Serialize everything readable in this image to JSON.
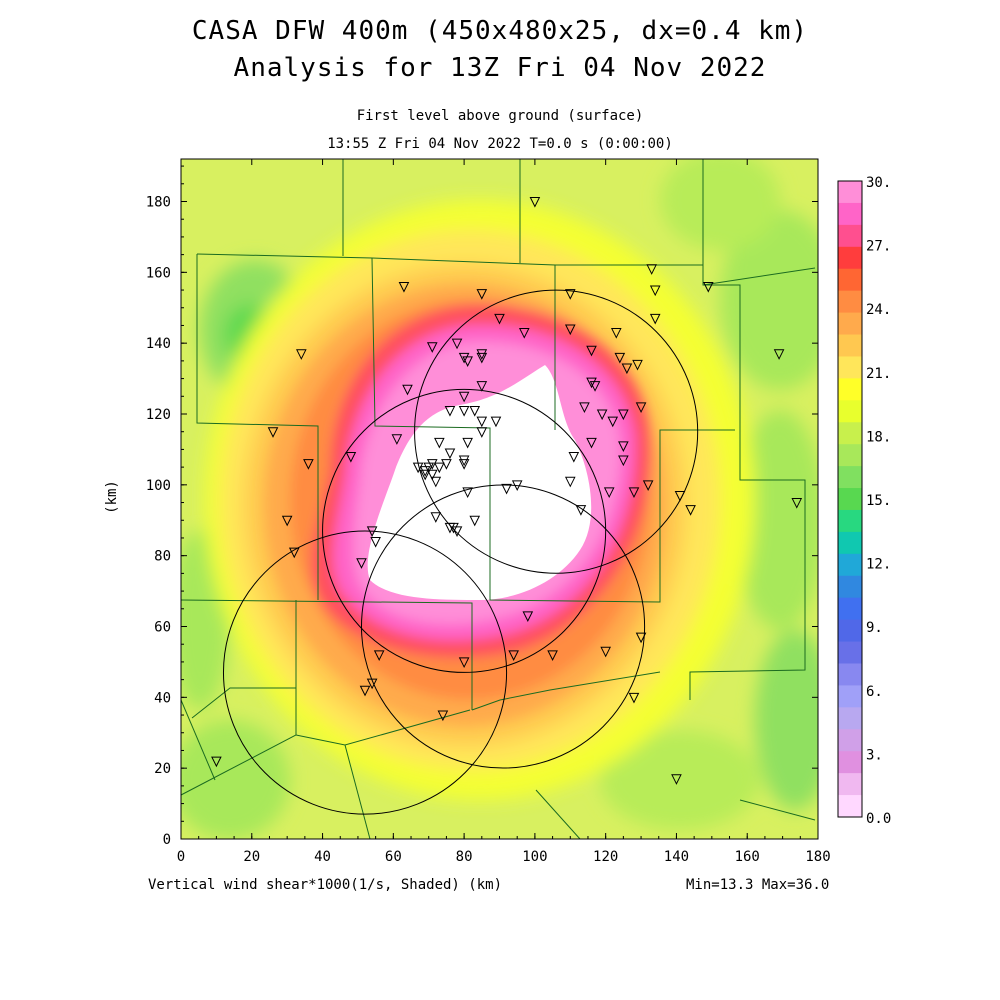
{
  "header": {
    "title_line1": "CASA DFW 400m (450x480x25, dx=0.4 km)",
    "title_line2": "Analysis for 13Z Fri 04 Nov 2022",
    "subtitle_line1": "First level above ground (surface)",
    "subtitle_line2": "13:55 Z Fri 04 Nov 2022   T=0.0 s (0:00:00)"
  },
  "footer": {
    "field_label": "Vertical wind shear*1000(1/s, Shaded)  (km)",
    "minmax": "Min=13.3 Max=36.0"
  },
  "axes": {
    "x_ticks": [
      0,
      20,
      40,
      60,
      80,
      100,
      120,
      140,
      160,
      180
    ],
    "y_ticks": [
      0,
      20,
      40,
      60,
      80,
      100,
      120,
      140,
      160,
      180
    ],
    "y_label": "(km)",
    "x_range": [
      0,
      180
    ],
    "y_range": [
      0,
      192
    ]
  },
  "colorbar": {
    "labels": [
      "30.",
      "27.",
      "24.",
      "21.",
      "18.",
      "15.",
      "12.",
      "9.",
      "6.",
      "3.",
      "0.0"
    ],
    "colors": [
      "#ff8ed8",
      "#ff64c8",
      "#ff4f8f",
      "#ff3d3d",
      "#ff6633",
      "#ff8c42",
      "#ffaa4c",
      "#ffc850",
      "#ffe65a",
      "#ffff28",
      "#e8ff2d",
      "#c8f04c",
      "#a8e85a",
      "#80e060",
      "#58d850",
      "#28d880",
      "#10c8b0",
      "#20a8d8",
      "#3088e0",
      "#4070f0",
      "#5068e8",
      "#6870e8",
      "#8888f0",
      "#a0a0f8",
      "#b8a8f0",
      "#d0a0e8",
      "#e090e0",
      "#f0b8f0",
      "#ffd8ff"
    ]
  },
  "map": {
    "radar_circles_center_km": [
      [
        106,
        115
      ],
      [
        80,
        87
      ],
      [
        91,
        60
      ],
      [
        52,
        47
      ]
    ],
    "radar_radius_km": 40,
    "stations_km": [
      [
        63,
        156
      ],
      [
        85,
        154
      ],
      [
        110,
        154
      ],
      [
        133,
        161
      ],
      [
        134,
        155
      ],
      [
        149,
        156
      ],
      [
        90,
        147
      ],
      [
        110,
        144
      ],
      [
        123,
        143
      ],
      [
        97,
        143
      ],
      [
        134,
        147
      ],
      [
        78,
        140
      ],
      [
        71,
        139
      ],
      [
        85,
        137
      ],
      [
        85,
        136
      ],
      [
        80,
        136
      ],
      [
        81,
        135
      ],
      [
        116,
        138
      ],
      [
        124,
        136
      ],
      [
        126,
        133
      ],
      [
        129,
        134
      ],
      [
        34,
        137
      ],
      [
        169,
        137
      ],
      [
        64,
        127
      ],
      [
        85,
        128
      ],
      [
        80,
        125
      ],
      [
        116,
        129
      ],
      [
        117,
        128
      ],
      [
        114,
        122
      ],
      [
        83,
        121
      ],
      [
        76,
        121
      ],
      [
        80,
        121
      ],
      [
        85,
        118
      ],
      [
        89,
        118
      ],
      [
        122,
        118
      ],
      [
        130,
        122
      ],
      [
        119,
        120
      ],
      [
        125,
        120
      ],
      [
        26,
        115
      ],
      [
        61,
        113
      ],
      [
        81,
        112
      ],
      [
        73,
        112
      ],
      [
        85,
        115
      ],
      [
        116,
        112
      ],
      [
        125,
        111
      ],
      [
        76,
        109
      ],
      [
        111,
        108
      ],
      [
        48,
        108
      ],
      [
        75,
        106
      ],
      [
        125,
        107
      ],
      [
        36,
        106
      ],
      [
        67,
        105
      ],
      [
        69,
        104
      ],
      [
        69,
        103
      ],
      [
        70,
        105
      ],
      [
        71,
        106
      ],
      [
        73,
        105
      ],
      [
        80,
        106
      ],
      [
        80,
        107
      ],
      [
        71,
        103
      ],
      [
        72,
        101
      ],
      [
        81,
        98
      ],
      [
        92,
        99
      ],
      [
        95,
        100
      ],
      [
        110,
        101
      ],
      [
        121,
        98
      ],
      [
        128,
        98
      ],
      [
        132,
        100
      ],
      [
        141,
        97
      ],
      [
        144,
        93
      ],
      [
        174,
        95
      ],
      [
        30,
        90
      ],
      [
        72,
        91
      ],
      [
        83,
        90
      ],
      [
        113,
        93
      ],
      [
        76,
        88
      ],
      [
        77,
        88
      ],
      [
        78,
        87
      ],
      [
        54,
        87
      ],
      [
        32,
        81
      ],
      [
        55,
        84
      ],
      [
        51,
        78
      ],
      [
        98,
        63
      ],
      [
        130,
        57
      ],
      [
        56,
        52
      ],
      [
        80,
        50
      ],
      [
        94,
        52
      ],
      [
        105,
        52
      ],
      [
        120,
        53
      ],
      [
        54,
        44
      ],
      [
        52,
        42
      ],
      [
        128,
        40
      ],
      [
        74,
        35
      ],
      [
        10,
        22
      ],
      [
        140,
        17
      ],
      [
        100,
        180
      ]
    ]
  }
}
